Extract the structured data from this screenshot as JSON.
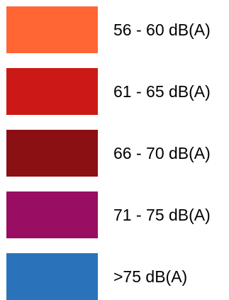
{
  "legend": {
    "items": [
      {
        "label": "56 - 60 dB(A)",
        "color": "#ff6633"
      },
      {
        "label": "61 - 65 dB(A)",
        "color": "#cc1915"
      },
      {
        "label": "66 - 70 dB(A)",
        "color": "#8b1014"
      },
      {
        "label": "71 - 75 dB(A)",
        "color": "#990d63"
      },
      {
        "label": ">75 dB(A)",
        "color": "#2a73bb"
      }
    ]
  }
}
